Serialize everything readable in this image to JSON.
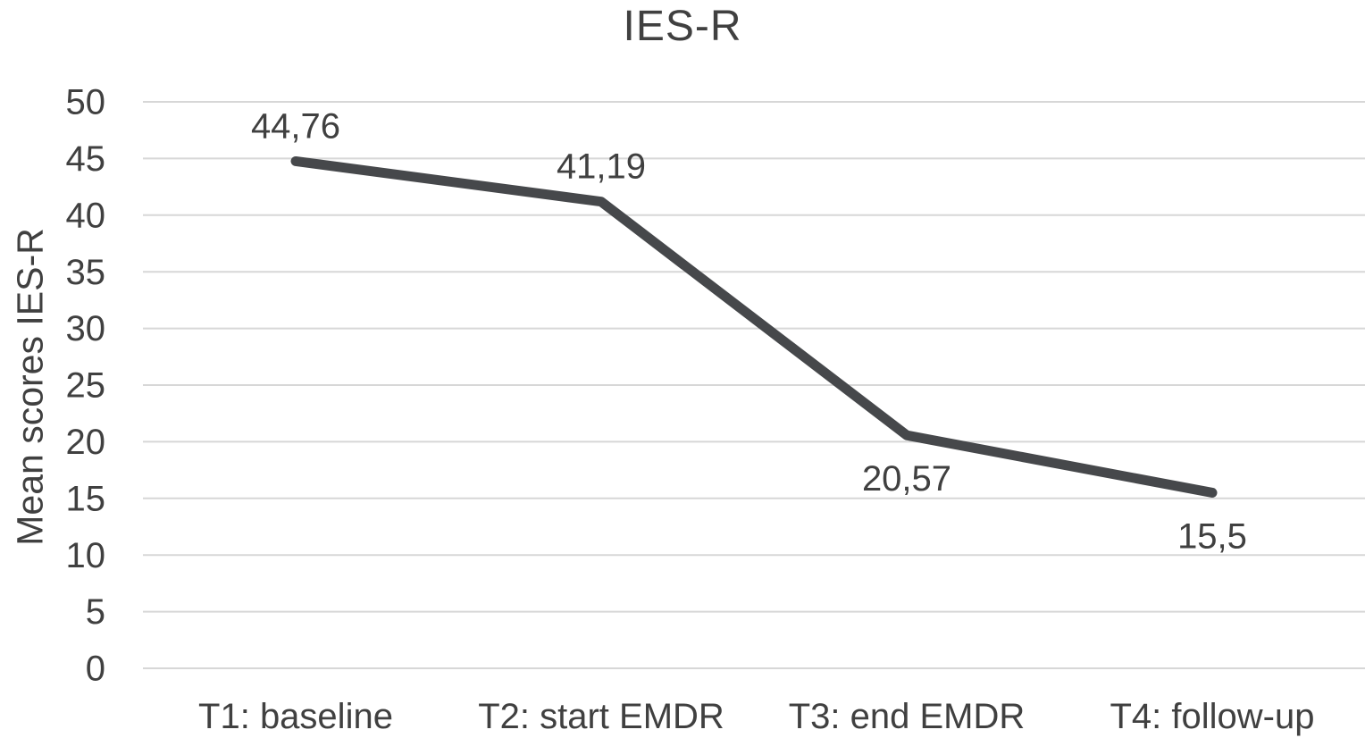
{
  "chart_data": {
    "type": "line",
    "title": "IES-R",
    "ylabel": "Mean scores IES-R",
    "xlabel": "",
    "categories": [
      "T1: baseline",
      "T2: start EMDR",
      "T3: end EMDR",
      "T4: follow-up"
    ],
    "series": [
      {
        "name": "IES-R",
        "values": [
          44.76,
          41.19,
          20.57,
          15.5
        ],
        "data_labels": [
          "44,76",
          "41,19",
          "20,57",
          "15,5"
        ],
        "label_positions": [
          "above",
          "above",
          "below",
          "below"
        ]
      }
    ],
    "ylim": [
      0,
      50
    ],
    "ytick_step": 5,
    "ytick_labels": [
      "0",
      "5",
      "10",
      "15",
      "20",
      "25",
      "30",
      "35",
      "40",
      "45",
      "50"
    ],
    "grid": true,
    "legend": "none",
    "colors": {
      "line": "#46484b",
      "text": "#404040",
      "gridline": "#d7d7d7",
      "background": "#ffffff"
    }
  }
}
